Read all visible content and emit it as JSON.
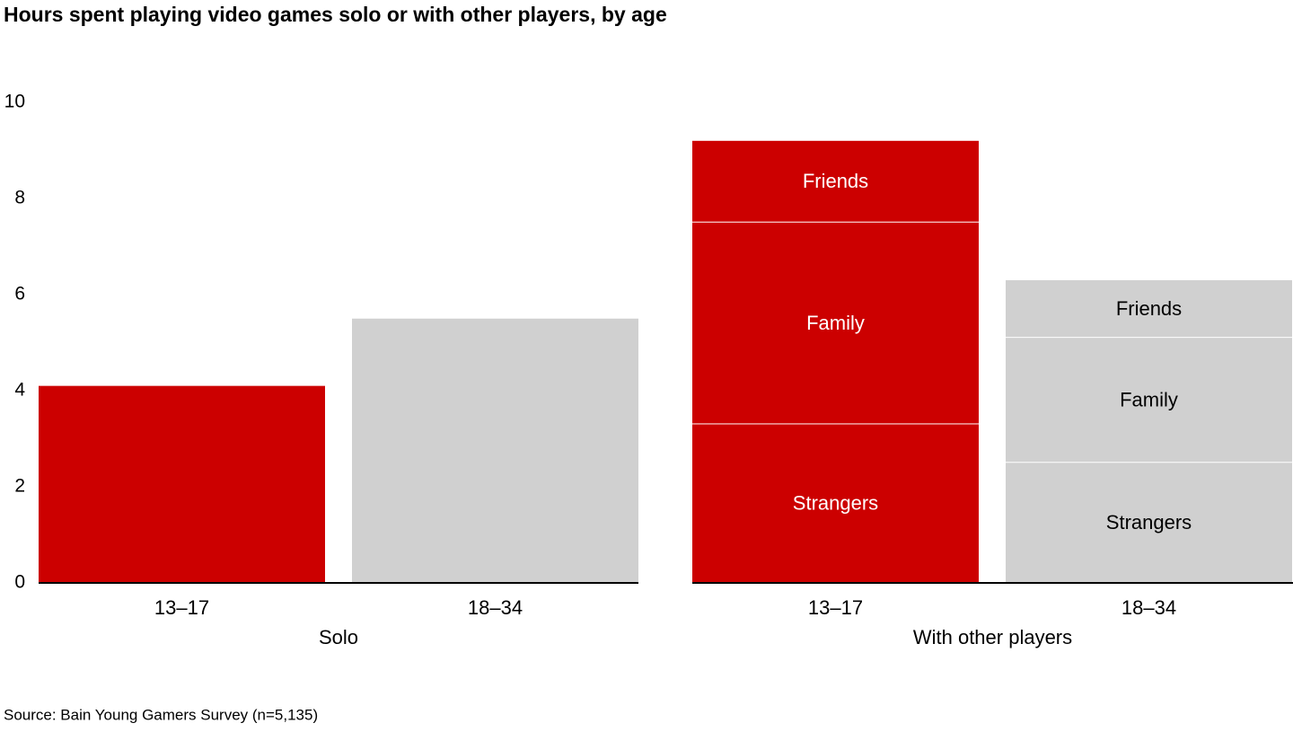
{
  "chart_data": {
    "type": "bar",
    "title": "Hours spent playing video games solo or with other players, by age",
    "source": "Source: Bain Young Gamers Survey (n=5,135)",
    "ylim": [
      0,
      10
    ],
    "yticks": [
      0,
      2,
      4,
      6,
      8,
      10
    ],
    "grid": false,
    "colors": [
      "#cc0000",
      "#d0d0d0"
    ],
    "groups": [
      {
        "name": "Solo",
        "categories": [
          "13–17",
          "18–34"
        ],
        "values": [
          4.1,
          5.5
        ]
      },
      {
        "name": "With other players",
        "categories": [
          "13–17",
          "18–34"
        ],
        "series": [
          {
            "name": "Strangers",
            "values": [
              3.3,
              2.5
            ]
          },
          {
            "name": "Family",
            "values": [
              4.2,
              2.6
            ]
          },
          {
            "name": "Friends",
            "values": [
              1.7,
              1.2
            ]
          }
        ]
      }
    ]
  }
}
